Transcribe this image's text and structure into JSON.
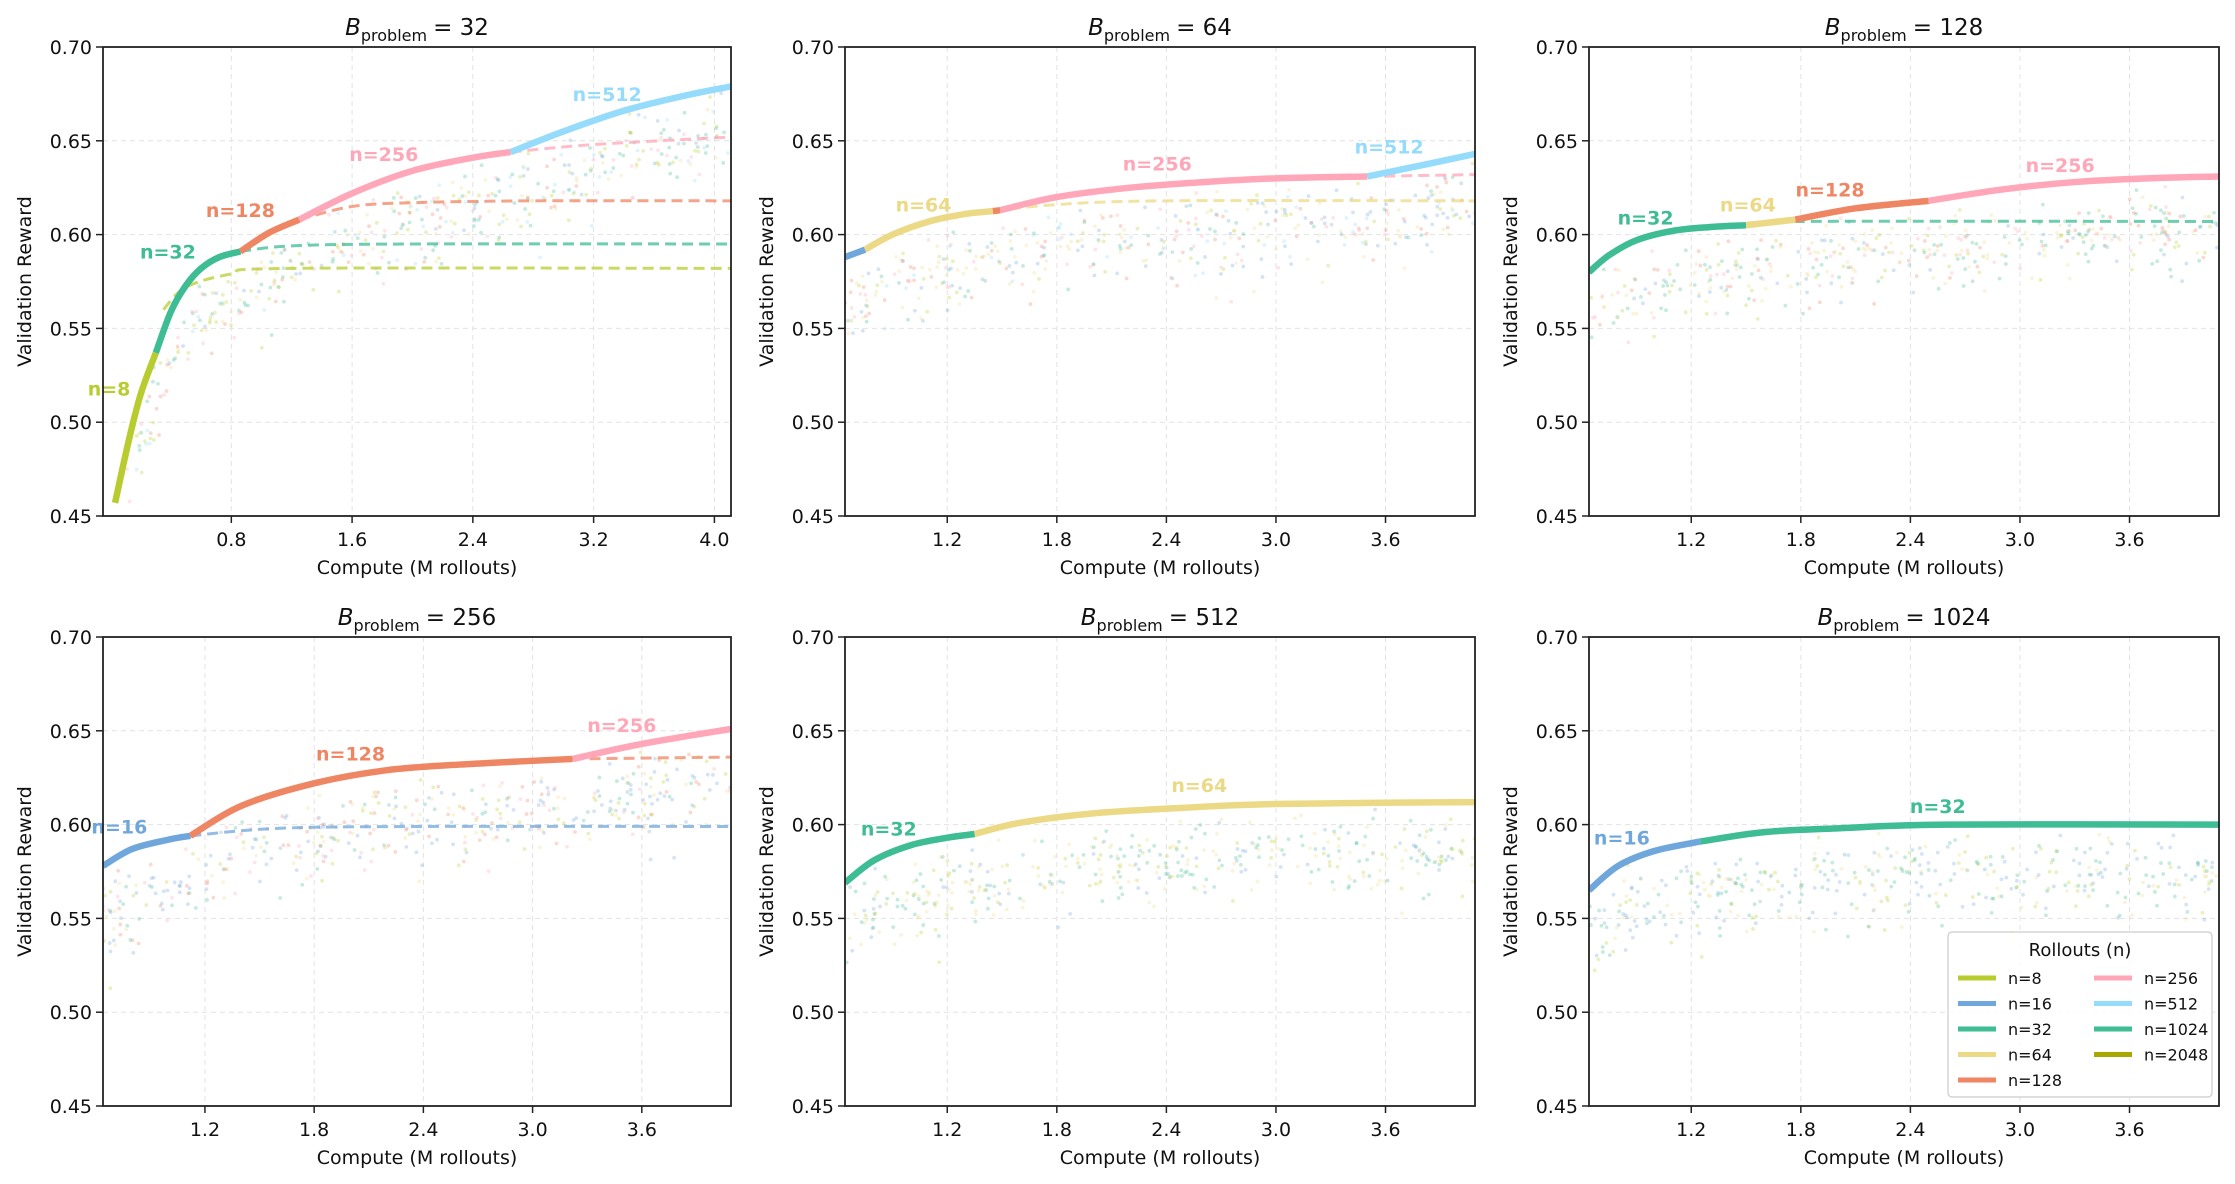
{
  "colors": {
    "n=8": "#b8cc30",
    "n=16": "#6fa7dc",
    "n=32": "#3ebc93",
    "n=64": "#ecd985",
    "n=128": "#ef8663",
    "n=256": "#ffa7b9",
    "n=512": "#95dbfc",
    "n=1024": "#3ebc93",
    "n=2048": "#a8a800"
  },
  "legend": {
    "title": "Rollouts (n)",
    "placement": "lower-right of last panel",
    "entries": [
      "n=8",
      "n=16",
      "n=32",
      "n=64",
      "n=128",
      "n=256",
      "n=512",
      "n=1024",
      "n=2048"
    ]
  },
  "chart_data": [
    {
      "type": "line",
      "title": {
        "symbol": "B",
        "subscript": "problem",
        "value": "= 32"
      },
      "xlabel": "Compute (M rollouts)",
      "ylabel": "Validation Reward",
      "xlim": [
        -0.05,
        4.11
      ],
      "ylim": [
        0.45,
        0.7
      ],
      "grid": true,
      "xticks": [
        "0.8",
        "1.6",
        "2.4",
        "3.2",
        "4.0"
      ],
      "yticks": [
        "0.45",
        "0.50",
        "0.55",
        "0.60",
        "0.65",
        "0.70"
      ],
      "series": [
        {
          "name": "n=8",
          "style": "solid",
          "points": [
            [
              0.03,
              0.457
            ],
            [
              0.12,
              0.49
            ],
            [
              0.2,
              0.515
            ],
            [
              0.3,
              0.537
            ]
          ]
        },
        {
          "name": "n=32",
          "style": "solid",
          "points": [
            [
              0.3,
              0.537
            ],
            [
              0.4,
              0.559
            ],
            [
              0.5,
              0.573
            ],
            [
              0.6,
              0.582
            ],
            [
              0.72,
              0.588
            ],
            [
              0.86,
              0.591
            ]
          ]
        },
        {
          "name": "n=128",
          "style": "solid",
          "points": [
            [
              0.86,
              0.591
            ],
            [
              1.05,
              0.601
            ],
            [
              1.25,
              0.608
            ]
          ]
        },
        {
          "name": "n=256",
          "style": "solid",
          "points": [
            [
              1.25,
              0.608
            ],
            [
              1.6,
              0.622
            ],
            [
              2.0,
              0.634
            ],
            [
              2.4,
              0.641
            ],
            [
              2.65,
              0.644
            ]
          ]
        },
        {
          "name": "n=512",
          "style": "solid",
          "points": [
            [
              2.65,
              0.644
            ],
            [
              3.0,
              0.655
            ],
            [
              3.4,
              0.666
            ],
            [
              3.8,
              0.674
            ],
            [
              4.11,
              0.679
            ]
          ]
        },
        {
          "name": "n=8",
          "style": "dashed",
          "points": [
            [
              0.35,
              0.56
            ],
            [
              0.5,
              0.572
            ],
            [
              0.8,
              0.579
            ],
            [
              1.2,
              0.582
            ],
            [
              4.11,
              0.582
            ]
          ]
        },
        {
          "name": "n=32",
          "style": "dashed",
          "points": [
            [
              0.86,
              0.591
            ],
            [
              1.2,
              0.594
            ],
            [
              2.0,
              0.595
            ],
            [
              4.11,
              0.595
            ]
          ]
        },
        {
          "name": "n=128",
          "style": "dashed",
          "points": [
            [
              1.25,
              0.608
            ],
            [
              1.6,
              0.615
            ],
            [
              2.0,
              0.617
            ],
            [
              2.8,
              0.618
            ],
            [
              4.11,
              0.618
            ]
          ]
        },
        {
          "name": "n=256",
          "style": "dashed",
          "points": [
            [
              2.65,
              0.644
            ],
            [
              3.2,
              0.648
            ],
            [
              4.11,
              0.652
            ]
          ]
        }
      ],
      "annotations": [
        {
          "text": "n=8",
          "x": -0.01,
          "y": 0.518
        },
        {
          "text": "n=32",
          "x": 0.38,
          "y": 0.591
        },
        {
          "text": "n=128",
          "x": 0.86,
          "y": 0.613
        },
        {
          "text": "n=256",
          "x": 1.81,
          "y": 0.643
        },
        {
          "text": "n=512",
          "x": 3.29,
          "y": 0.675
        }
      ]
    },
    {
      "type": "line",
      "title": {
        "symbol": "B",
        "subscript": "problem",
        "value": "= 64"
      },
      "xlabel": "Compute (M rollouts)",
      "ylabel": "Validation Reward",
      "xlim": [
        0.64,
        4.09
      ],
      "ylim": [
        0.45,
        0.7
      ],
      "grid": true,
      "xticks": [
        "1.2",
        "1.8",
        "2.4",
        "3.0",
        "3.6"
      ],
      "yticks": [
        "0.45",
        "0.50",
        "0.55",
        "0.60",
        "0.65",
        "0.70"
      ],
      "series": [
        {
          "name": "n=16",
          "style": "solid",
          "points": [
            [
              0.64,
              0.588
            ],
            [
              0.75,
              0.592
            ]
          ]
        },
        {
          "name": "n=64",
          "style": "solid",
          "points": [
            [
              0.75,
              0.592
            ],
            [
              0.9,
              0.6
            ],
            [
              1.1,
              0.607
            ],
            [
              1.3,
              0.611
            ],
            [
              1.45,
              0.6125
            ]
          ]
        },
        {
          "name": "n=128",
          "style": "solid",
          "points": [
            [
              1.45,
              0.6125
            ],
            [
              1.49,
              0.613
            ]
          ]
        },
        {
          "name": "n=256",
          "style": "solid",
          "points": [
            [
              1.49,
              0.613
            ],
            [
              1.8,
              0.62
            ],
            [
              2.2,
              0.625
            ],
            [
              2.6,
              0.628
            ],
            [
              3.0,
              0.63
            ],
            [
              3.5,
              0.631
            ]
          ]
        },
        {
          "name": "n=512",
          "style": "solid",
          "points": [
            [
              3.5,
              0.631
            ],
            [
              3.8,
              0.637
            ],
            [
              4.09,
              0.643
            ]
          ]
        },
        {
          "name": "n=64",
          "style": "dashed",
          "points": [
            [
              1.45,
              0.6125
            ],
            [
              1.8,
              0.616
            ],
            [
              2.4,
              0.618
            ],
            [
              4.09,
              0.618
            ]
          ]
        },
        {
          "name": "n=256",
          "style": "dashed",
          "points": [
            [
              3.5,
              0.631
            ],
            [
              4.09,
              0.632
            ]
          ]
        }
      ],
      "annotations": [
        {
          "text": "n=64",
          "x": 1.07,
          "y": 0.616
        },
        {
          "text": "n=256",
          "x": 2.35,
          "y": 0.638
        },
        {
          "text": "n=512",
          "x": 3.62,
          "y": 0.647
        }
      ]
    },
    {
      "type": "line",
      "title": {
        "symbol": "B",
        "subscript": "problem",
        "value": "= 128"
      },
      "xlabel": "Compute (M rollouts)",
      "ylabel": "Validation Reward",
      "xlim": [
        0.64,
        4.09
      ],
      "ylim": [
        0.45,
        0.7
      ],
      "grid": true,
      "xticks": [
        "1.2",
        "1.8",
        "2.4",
        "3.0",
        "3.6"
      ],
      "yticks": [
        "0.45",
        "0.50",
        "0.55",
        "0.60",
        "0.65",
        "0.70"
      ],
      "series": [
        {
          "name": "n=32",
          "style": "solid",
          "points": [
            [
              0.64,
              0.58
            ],
            [
              0.75,
              0.589
            ],
            [
              0.9,
              0.597
            ],
            [
              1.1,
              0.602
            ],
            [
              1.3,
              0.604
            ],
            [
              1.5,
              0.605
            ]
          ]
        },
        {
          "name": "n=64",
          "style": "solid",
          "points": [
            [
              1.5,
              0.605
            ],
            [
              1.77,
              0.608
            ]
          ]
        },
        {
          "name": "n=128",
          "style": "solid",
          "points": [
            [
              1.77,
              0.608
            ],
            [
              2.1,
              0.614
            ],
            [
              2.5,
              0.618
            ]
          ]
        },
        {
          "name": "n=256",
          "style": "solid",
          "points": [
            [
              2.5,
              0.618
            ],
            [
              2.9,
              0.624
            ],
            [
              3.3,
              0.628
            ],
            [
              3.7,
              0.63
            ],
            [
              4.09,
              0.631
            ]
          ]
        },
        {
          "name": "n=32",
          "style": "dashed",
          "points": [
            [
              1.5,
              0.605
            ],
            [
              1.8,
              0.607
            ],
            [
              4.09,
              0.607
            ]
          ]
        }
      ],
      "annotations": [
        {
          "text": "n=32",
          "x": 0.95,
          "y": 0.609
        },
        {
          "text": "n=64",
          "x": 1.51,
          "y": 0.616
        },
        {
          "text": "n=128",
          "x": 1.96,
          "y": 0.624
        },
        {
          "text": "n=256",
          "x": 3.22,
          "y": 0.637
        }
      ]
    },
    {
      "type": "line",
      "title": {
        "symbol": "B",
        "subscript": "problem",
        "value": "= 256"
      },
      "xlabel": "Compute (M rollouts)",
      "ylabel": "Validation Reward",
      "xlim": [
        0.64,
        4.09
      ],
      "ylim": [
        0.45,
        0.7
      ],
      "grid": true,
      "xticks": [
        "1.2",
        "1.8",
        "2.4",
        "3.0",
        "3.6"
      ],
      "yticks": [
        "0.45",
        "0.50",
        "0.55",
        "0.60",
        "0.65",
        "0.70"
      ],
      "series": [
        {
          "name": "n=16",
          "style": "solid",
          "points": [
            [
              0.64,
              0.578
            ],
            [
              0.8,
              0.587
            ],
            [
              1.0,
              0.592
            ],
            [
              1.12,
              0.594
            ]
          ]
        },
        {
          "name": "n=128",
          "style": "solid",
          "points": [
            [
              1.12,
              0.594
            ],
            [
              1.4,
              0.61
            ],
            [
              1.8,
              0.622
            ],
            [
              2.2,
              0.629
            ],
            [
              2.6,
              0.632
            ],
            [
              3.0,
              0.634
            ],
            [
              3.22,
              0.635
            ]
          ]
        },
        {
          "name": "n=256",
          "style": "solid",
          "points": [
            [
              3.22,
              0.635
            ],
            [
              3.6,
              0.643
            ],
            [
              4.09,
              0.651
            ]
          ]
        },
        {
          "name": "n=16",
          "style": "dashed",
          "points": [
            [
              1.12,
              0.594
            ],
            [
              1.6,
              0.598
            ],
            [
              2.4,
              0.599
            ],
            [
              4.09,
              0.599
            ]
          ]
        },
        {
          "name": "n=128",
          "style": "dashed",
          "points": [
            [
              3.22,
              0.635
            ],
            [
              4.09,
              0.636
            ]
          ]
        }
      ],
      "annotations": [
        {
          "text": "n=16",
          "x": 0.73,
          "y": 0.599
        },
        {
          "text": "n=128",
          "x": 2.0,
          "y": 0.638
        },
        {
          "text": "n=256",
          "x": 3.49,
          "y": 0.653
        }
      ]
    },
    {
      "type": "line",
      "title": {
        "symbol": "B",
        "subscript": "problem",
        "value": "= 512"
      },
      "xlabel": "Compute (M rollouts)",
      "ylabel": "Validation Reward",
      "xlim": [
        0.64,
        4.09
      ],
      "ylim": [
        0.45,
        0.7
      ],
      "grid": true,
      "xticks": [
        "1.2",
        "1.8",
        "2.4",
        "3.0",
        "3.6"
      ],
      "yticks": [
        "0.45",
        "0.50",
        "0.55",
        "0.60",
        "0.65",
        "0.70"
      ],
      "series": [
        {
          "name": "n=32",
          "style": "solid",
          "points": [
            [
              0.64,
              0.569
            ],
            [
              0.8,
              0.581
            ],
            [
              1.0,
              0.589
            ],
            [
              1.2,
              0.593
            ],
            [
              1.35,
              0.595
            ]
          ]
        },
        {
          "name": "n=64",
          "style": "solid",
          "points": [
            [
              1.35,
              0.595
            ],
            [
              1.6,
              0.601
            ],
            [
              2.0,
              0.606
            ],
            [
              2.5,
              0.609
            ],
            [
              3.0,
              0.611
            ],
            [
              4.09,
              0.612
            ]
          ]
        }
      ],
      "annotations": [
        {
          "text": "n=32",
          "x": 0.88,
          "y": 0.598
        },
        {
          "text": "n=64",
          "x": 2.58,
          "y": 0.621
        }
      ]
    },
    {
      "type": "line",
      "title": {
        "symbol": "B",
        "subscript": "problem",
        "value": "= 1024"
      },
      "xlabel": "Compute (M rollouts)",
      "ylabel": "Validation Reward",
      "xlim": [
        0.64,
        4.09
      ],
      "ylim": [
        0.45,
        0.7
      ],
      "grid": true,
      "xticks": [
        "1.2",
        "1.8",
        "2.4",
        "3.0",
        "3.6"
      ],
      "yticks": [
        "0.45",
        "0.50",
        "0.55",
        "0.60",
        "0.65",
        "0.70"
      ],
      "series": [
        {
          "name": "n=16",
          "style": "solid",
          "points": [
            [
              0.64,
              0.565
            ],
            [
              0.8,
              0.578
            ],
            [
              1.0,
              0.586
            ],
            [
              1.25,
              0.591
            ]
          ]
        },
        {
          "name": "n=32",
          "style": "solid",
          "points": [
            [
              1.25,
              0.591
            ],
            [
              1.6,
              0.596
            ],
            [
              2.0,
              0.598
            ],
            [
              2.6,
              0.6
            ],
            [
              4.09,
              0.6
            ]
          ]
        }
      ],
      "annotations": [
        {
          "text": "n=16",
          "x": 0.82,
          "y": 0.593
        },
        {
          "text": "n=32",
          "x": 2.55,
          "y": 0.61
        }
      ],
      "legend": true
    }
  ]
}
